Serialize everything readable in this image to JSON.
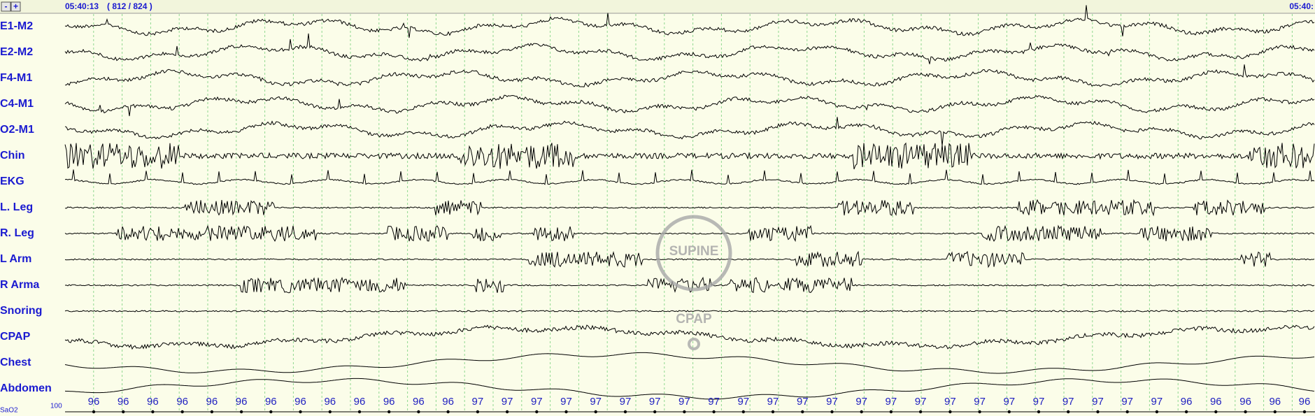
{
  "toolbar": {
    "buttons": [
      "-",
      "+"
    ],
    "time": "05:40:13",
    "epoch": "( 812 / 824 )",
    "end_time": "05:40:"
  },
  "channels": [
    "E1-M2",
    "E2-M2",
    "F4-M1",
    "C4-M1",
    "O2-M1",
    "Chin",
    "EKG",
    "L. Leg",
    "R. Leg",
    "L Arm",
    "R Arma",
    "Snoring",
    "CPAP",
    "Chest",
    "Abdomen"
  ],
  "overlay": {
    "position": "SUPINE",
    "mode": "CPAP"
  },
  "sao2": {
    "label": "SaO2",
    "scale_top": "100",
    "readings": [
      96,
      96,
      96,
      96,
      96,
      96,
      96,
      96,
      96,
      96,
      96,
      96,
      96,
      97,
      97,
      97,
      97,
      97,
      97,
      97,
      97,
      97,
      97,
      97,
      97,
      97,
      97,
      97,
      97,
      97,
      97,
      97,
      97,
      97,
      97,
      97,
      97,
      96,
      96,
      96,
      96,
      96
    ]
  }
}
